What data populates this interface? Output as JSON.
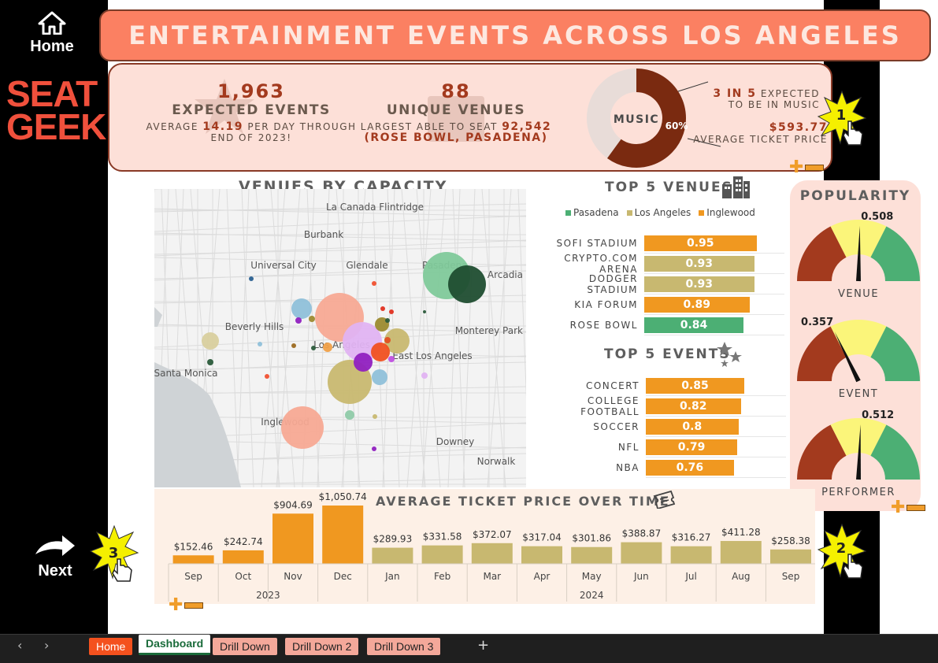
{
  "nav": {
    "home_label": "Home",
    "next_label": "Next"
  },
  "logo": {
    "line1": "SEAT",
    "line2": "GEEK"
  },
  "title": "ENTERTAINMENT EVENTS ACROSS LOS ANGELES",
  "kpis": {
    "events_value": "1,963",
    "events_label": "EXPECTED EVENTS",
    "events_sub_pre": "AVERAGE",
    "events_sub_value": "14.19",
    "events_sub_post": "PER DAY THROUGH",
    "events_sub_line2": "END OF 2023!",
    "venues_value": "88",
    "venues_label": "UNIQUE VENUES",
    "venues_sub_pre": "LARGEST ABLE TO SEAT",
    "venues_sub_value": "92,542",
    "venues_sub_line2": "(ROSE BOWL, PASADENA)",
    "donut_center": "MUSIC",
    "donut_pct": "60%",
    "donut_fraction": 0.6,
    "music_share_hl": "3 IN 5",
    "music_share_post": "EXPECTED",
    "music_share_line2": "TO BE IN MUSIC",
    "avg_price": "$593.77",
    "avg_price_label": "AVERAGE TICKET PRICE"
  },
  "map": {
    "title": "VENUES BY CAPACITY",
    "places": [
      "La Canada Flintridge",
      "Burbank",
      "Universal City",
      "Glendale",
      "Pasadena",
      "Arcadia",
      "Beverly Hills",
      "Los Angeles",
      "East Los Angeles",
      "Santa Monica",
      "Inglewood",
      "Downey",
      "Norwalk",
      "Monterey Park"
    ]
  },
  "top_venues": {
    "title": "TOP 5 VENUES",
    "legend": [
      {
        "name": "Pasadena",
        "color": "#4caf74"
      },
      {
        "name": "Los Angeles",
        "color": "#c8b870"
      },
      {
        "name": "Inglewood",
        "color": "#f09820"
      }
    ],
    "items": [
      {
        "label": "SOFI STADIUM",
        "value": "0.95",
        "v": 0.95,
        "color": "#f09820"
      },
      {
        "label": "CRYPTO.COM ARENA",
        "value": "0.93",
        "v": 0.93,
        "color": "#c8b870"
      },
      {
        "label": "DODGER STADIUM",
        "value": "0.93",
        "v": 0.93,
        "color": "#c8b870"
      },
      {
        "label": "KIA FORUM",
        "value": "0.89",
        "v": 0.89,
        "color": "#f09820"
      },
      {
        "label": "ROSE BOWL",
        "value": "0.84",
        "v": 0.84,
        "color": "#4caf74"
      }
    ]
  },
  "top_events": {
    "title": "TOP 5 EVENTS",
    "items": [
      {
        "label": "CONCERT",
        "value": "0.85",
        "v": 0.85
      },
      {
        "label": "COLLEGE FOOTBALL",
        "value": "0.82",
        "v": 0.82
      },
      {
        "label": "SOCCER",
        "value": "0.8",
        "v": 0.8
      },
      {
        "label": "NFL",
        "value": "0.79",
        "v": 0.79
      },
      {
        "label": "NBA",
        "value": "0.76",
        "v": 0.76
      }
    ]
  },
  "popularity": {
    "title": "POPULARITY",
    "gauges": [
      {
        "label": "VENUE",
        "value": "0.508",
        "v": 0.508
      },
      {
        "label": "EVENT",
        "value": "0.357",
        "v": 0.357
      },
      {
        "label": "PERFORMER",
        "value": "0.512",
        "v": 0.512
      }
    ]
  },
  "chart_data": {
    "type": "bar",
    "title": "AVERAGE TICKET PRICE OVER TIME",
    "categories": [
      "Sep",
      "Oct",
      "Nov",
      "Dec",
      "Jan",
      "Feb",
      "Mar",
      "Apr",
      "May",
      "Jun",
      "Jul",
      "Aug",
      "Sep"
    ],
    "groups": [
      {
        "label": "2023",
        "span": 4
      },
      {
        "label": "2024",
        "span": 9
      }
    ],
    "values": [
      152.46,
      242.74,
      904.69,
      1050.74,
      289.93,
      331.58,
      372.07,
      317.04,
      301.86,
      388.87,
      316.27,
      411.28,
      258.38
    ],
    "labels": [
      "$152.46",
      "$242.74",
      "$904.69",
      "$1,050.74",
      "$289.93",
      "$331.58",
      "$372.07",
      "$317.04",
      "$301.86",
      "$388.87",
      "$316.27",
      "$411.28",
      "$258.38"
    ],
    "colors": {
      "2023": "#f09820",
      "2024": "#c8b870"
    },
    "ylim": [
      0,
      1100
    ]
  },
  "callouts": [
    "1",
    "2",
    "3"
  ],
  "tabs": {
    "items": [
      {
        "label": "Home",
        "active": false,
        "style": "home"
      },
      {
        "label": "Dashboard",
        "active": true,
        "style": "active"
      },
      {
        "label": "Drill Down",
        "active": false,
        "style": "pink"
      },
      {
        "label": "Drill Down 2",
        "active": false,
        "style": "pink"
      },
      {
        "label": "Drill Down 3",
        "active": false,
        "style": "pink"
      }
    ],
    "add_label": "+"
  }
}
